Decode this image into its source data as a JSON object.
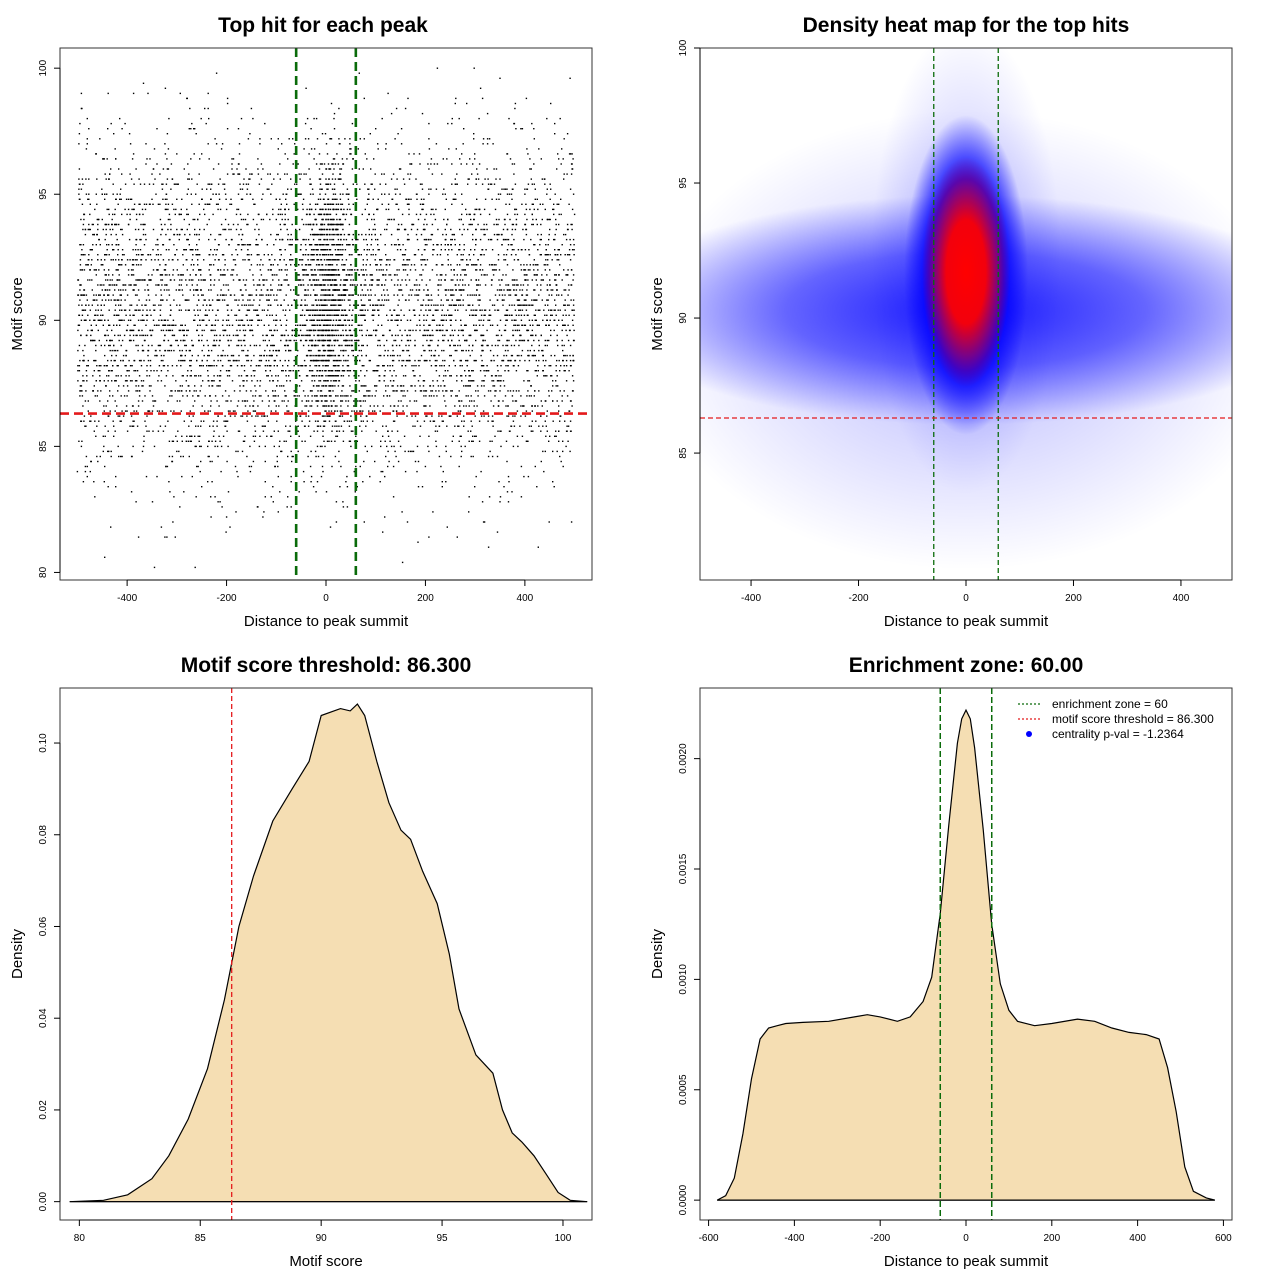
{
  "colors": {
    "scatter_point": "#000000",
    "threshold_line": "#e41a1c",
    "zone_line": "#0a6b0a",
    "density_fill": "#f5deb3",
    "heat_low": "#ffffff",
    "heat_mid": "#0000ff",
    "heat_high": "#ff0000"
  },
  "chart_data": [
    {
      "type": "scatter",
      "title": "Top hit for each peak",
      "xlabel": "Distance to peak summit",
      "ylabel": "Motif score",
      "xlim": [
        -535,
        535
      ],
      "ylim": [
        79.7,
        100.8
      ],
      "xticks": [
        -400,
        -200,
        0,
        200,
        400
      ],
      "yticks": [
        80,
        85,
        90,
        95,
        100
      ],
      "grid": false,
      "reference_lines": {
        "vertical": [
          -60,
          60
        ],
        "horizontal": [
          86.3
        ]
      },
      "distribution": {
        "x_range": [
          -500,
          500
        ],
        "score_range": [
          80,
          100
        ],
        "central_cluster_x": [
          -60,
          60
        ],
        "score_mode": 91,
        "approx_points": 7000
      }
    },
    {
      "type": "heatmap",
      "title": "Density heat map for the top hits",
      "xlabel": "Distance to peak summit",
      "ylabel": "Motif score",
      "xlim": [
        -495,
        495
      ],
      "ylim": [
        80.3,
        100.0
      ],
      "xticks": [
        -400,
        -200,
        0,
        200,
        400
      ],
      "yticks": [
        85,
        90,
        95,
        100
      ],
      "reference_lines": {
        "vertical": [
          -60,
          60
        ],
        "horizontal": [
          86.3
        ]
      },
      "hotspot": {
        "x": 0,
        "y": 91.5
      },
      "color_scale": [
        "white",
        "blue",
        "red"
      ]
    },
    {
      "type": "area",
      "title": "Motif score threshold: 86.300",
      "xlabel": "Motif score",
      "ylabel": "Density",
      "xlim": [
        79.2,
        101.2
      ],
      "ylim": [
        -0.004,
        0.112
      ],
      "xticks": [
        80,
        85,
        90,
        95,
        100
      ],
      "yticks": [
        0.0,
        0.02,
        0.04,
        0.06,
        0.08,
        0.1
      ],
      "ytick_labels": [
        "0.00",
        "0.02",
        "0.04",
        "0.06",
        "0.08",
        "0.10"
      ],
      "reference_lines": {
        "vertical": [
          86.3
        ]
      },
      "x": [
        79.6,
        81,
        82,
        83,
        83.7,
        84.5,
        85.3,
        86.0,
        86.6,
        87.2,
        88.0,
        88.8,
        89.5,
        90.0,
        90.8,
        91.2,
        91.5,
        91.8,
        92.3,
        92.8,
        93.3,
        93.7,
        94.2,
        94.8,
        95.3,
        95.7,
        96.4,
        97.1,
        97.5,
        97.9,
        98.3,
        98.8,
        99.3,
        99.8,
        100.3,
        101.0
      ],
      "y": [
        0.0,
        0.0003,
        0.0015,
        0.005,
        0.01,
        0.018,
        0.029,
        0.044,
        0.06,
        0.071,
        0.083,
        0.09,
        0.096,
        0.106,
        0.1075,
        0.107,
        0.1085,
        0.106,
        0.096,
        0.087,
        0.081,
        0.079,
        0.072,
        0.065,
        0.054,
        0.042,
        0.032,
        0.028,
        0.02,
        0.015,
        0.013,
        0.01,
        0.006,
        0.002,
        0.0003,
        0.0
      ]
    },
    {
      "type": "area",
      "title": "Enrichment zone: 60.00",
      "xlabel": "Distance to peak summit",
      "ylabel": "Density",
      "xlim": [
        -620,
        620
      ],
      "ylim": [
        -9e-05,
        0.00232
      ],
      "xticks": [
        -600,
        -400,
        -200,
        0,
        200,
        400,
        600
      ],
      "yticks": [
        0.0,
        0.0005,
        0.001,
        0.0015,
        0.002
      ],
      "ytick_labels": [
        "0.0000",
        "0.0005",
        "0.0010",
        "0.0015",
        "0.0020"
      ],
      "reference_lines": {
        "vertical": [
          -60,
          60
        ]
      },
      "x": [
        -580,
        -560,
        -540,
        -520,
        -500,
        -480,
        -460,
        -440,
        -420,
        -380,
        -320,
        -260,
        -230,
        -200,
        -160,
        -130,
        -100,
        -80,
        -60,
        -40,
        -20,
        -10,
        0,
        10,
        20,
        40,
        60,
        80,
        100,
        120,
        160,
        200,
        260,
        300,
        340,
        380,
        420,
        450,
        470,
        490,
        510,
        530,
        560,
        580
      ],
      "y": [
        0.0,
        2e-05,
        0.0001,
        0.0003,
        0.00055,
        0.00073,
        0.00078,
        0.00079,
        0.0008,
        0.000805,
        0.00081,
        0.00083,
        0.00084,
        0.00083,
        0.00081,
        0.00083,
        0.0009,
        0.00101,
        0.0013,
        0.0017,
        0.00207,
        0.00218,
        0.00222,
        0.00218,
        0.00205,
        0.00168,
        0.00125,
        0.00098,
        0.00086,
        0.00081,
        0.00079,
        0.0008,
        0.00082,
        0.00081,
        0.00078,
        0.00076,
        0.00075,
        0.00073,
        0.0006,
        0.0004,
        0.00015,
        4e-05,
        1e-05,
        0.0
      ]
    }
  ],
  "legend": {
    "placement": "top-right",
    "entries": [
      {
        "label": "enrichment zone = 60",
        "symbol": "dotted-line",
        "color": "#0a6b0a"
      },
      {
        "label": "motif score threshold = 86.300",
        "symbol": "dotted-line",
        "color": "#e41a1c"
      },
      {
        "label": "centrality p-val = -1.2364",
        "symbol": "dot",
        "color": "#0000ff"
      }
    ]
  }
}
